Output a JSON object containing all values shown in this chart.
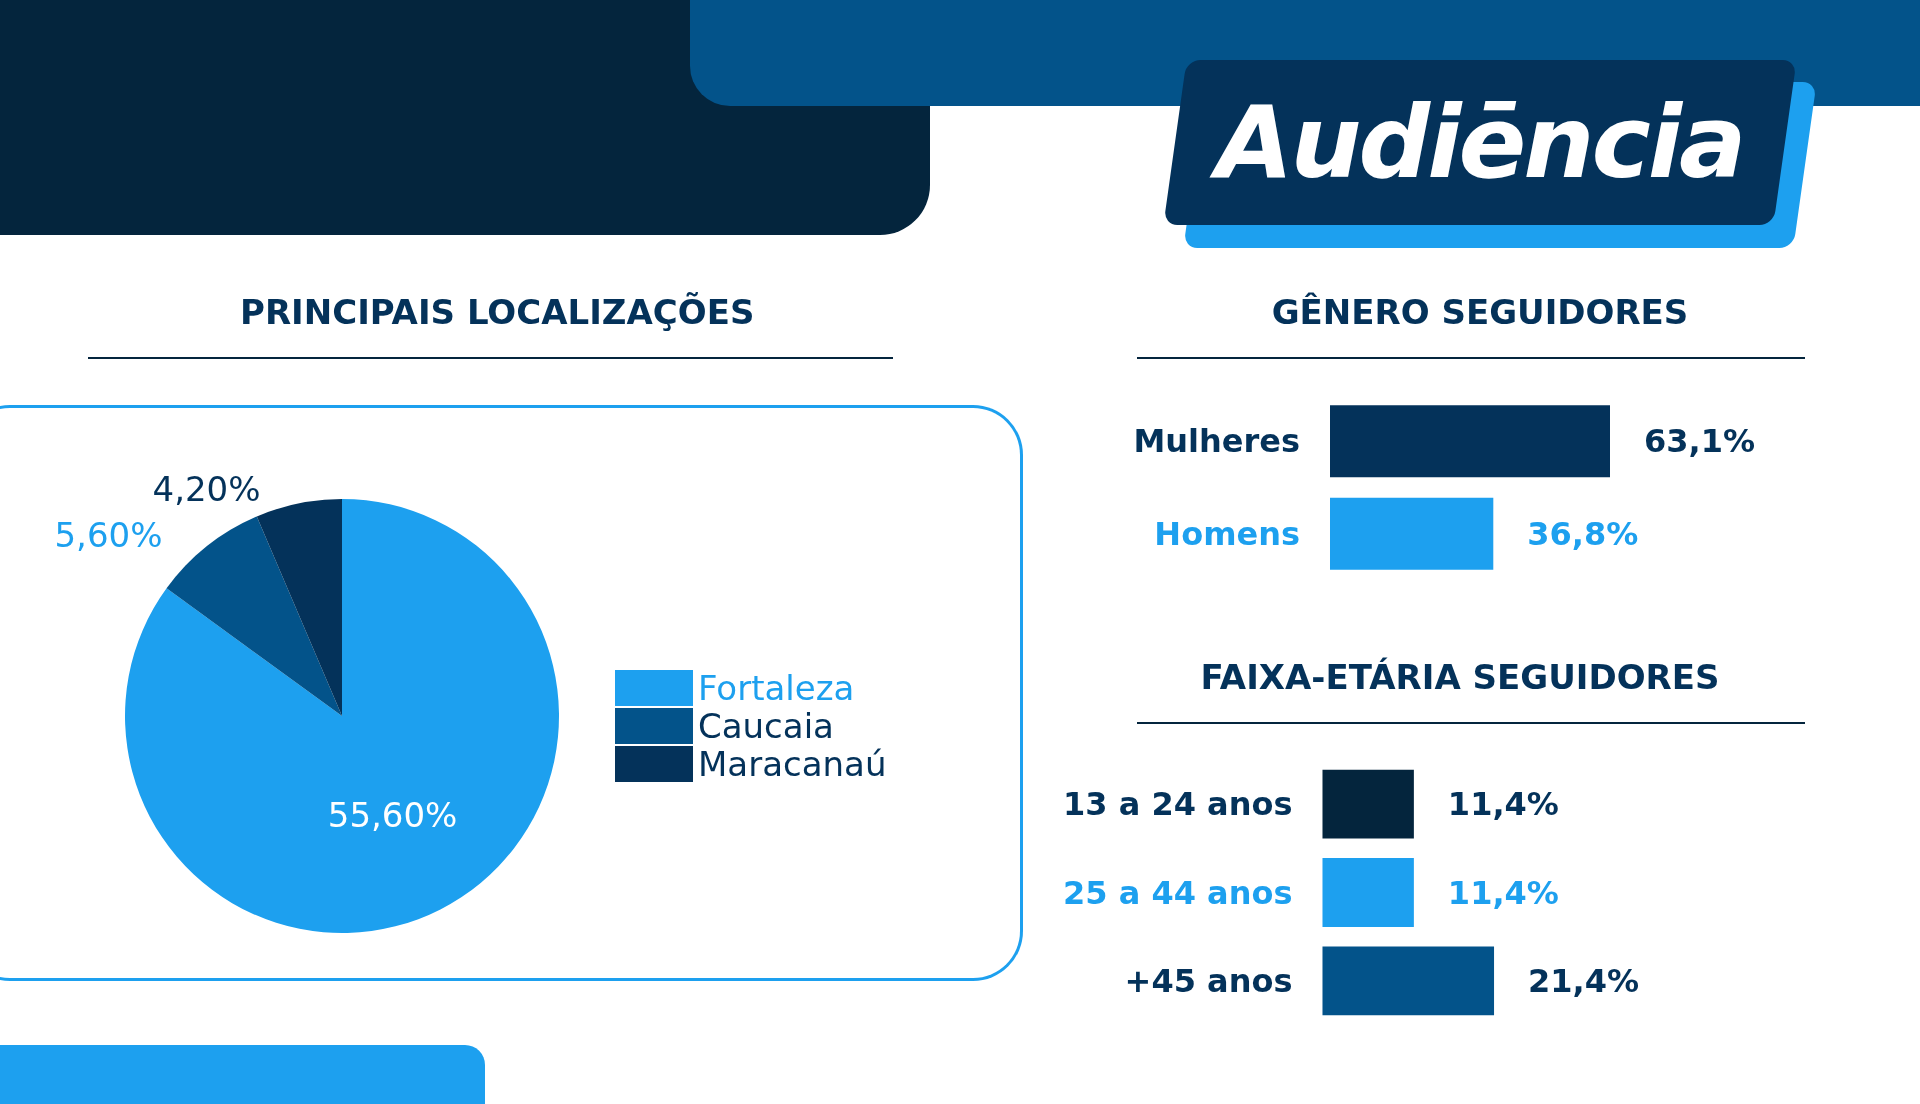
{
  "chart_data": [
    {
      "type": "pie",
      "title": "PRINCIPAIS LOCALIZAÇÕES",
      "annotations": [
        "Audiēncia"
      ],
      "categories": [
        "Fortaleza",
        "Caucaia",
        "Maracanaú"
      ],
      "values": [
        55.6,
        5.6,
        4.2
      ],
      "value_labels": [
        "55,60%",
        "5,60%",
        "4,20%"
      ],
      "colors": [
        "#1da0ef",
        "#03538a",
        "#04325a"
      ],
      "legend": "right"
    },
    {
      "type": "bar",
      "orientation": "horizontal",
      "title": "GÊNERO SEGUIDORES",
      "categories": [
        "Mulheres",
        "Homens"
      ],
      "values": [
        63.1,
        36.8
      ],
      "value_labels": [
        "63,1%",
        "36,8%"
      ],
      "colors": [
        "#04325a",
        "#1da0ef"
      ]
    },
    {
      "type": "bar",
      "orientation": "horizontal",
      "title": "FAIXA-ETÁRIA SEGUIDORES",
      "categories": [
        "13 a 24 anos",
        "25 a 44 anos",
        "+45 anos"
      ],
      "values": [
        11.4,
        11.4,
        21.4
      ],
      "value_labels": [
        "11,4%",
        "11,4%",
        "21,4%"
      ],
      "colors": [
        "#04253d",
        "#1da0ef",
        "#03538a"
      ]
    }
  ]
}
